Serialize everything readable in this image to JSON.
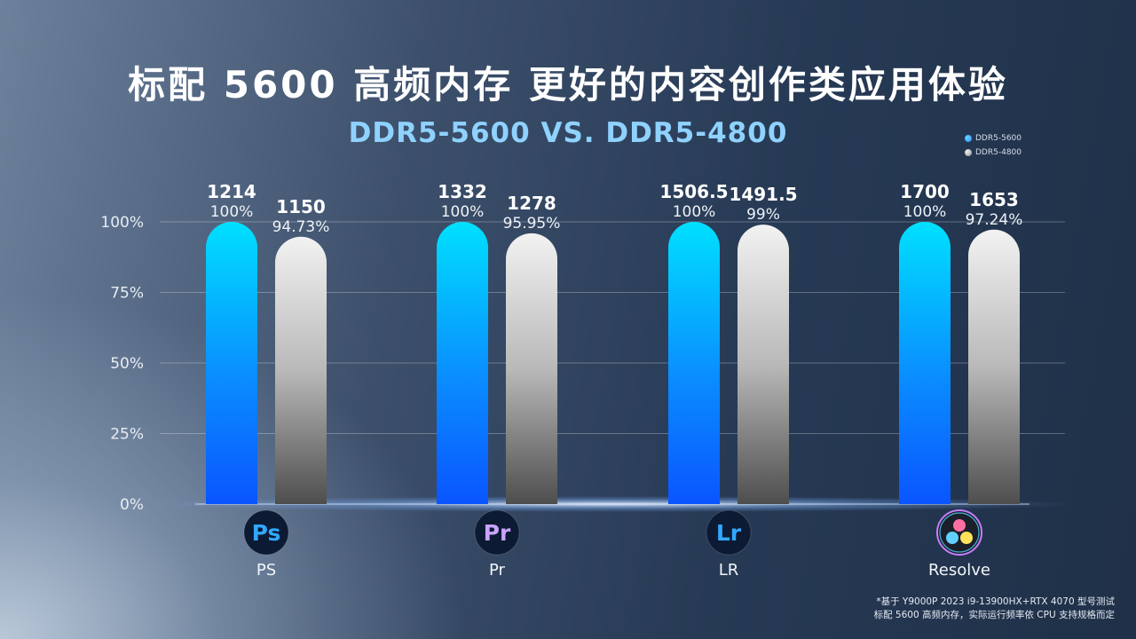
{
  "header": {
    "title": "标配 5600 高频内存 更好的内容创作类应用体验",
    "subtitle": "DDR5-5600 VS. DDR5-4800"
  },
  "colors": {
    "ddr5_5600": "#1fa2ff",
    "ddr5_4800": "#bfbfbf"
  },
  "icons": [
    {
      "name": "photoshop-icon",
      "text": "Ps"
    },
    {
      "name": "premiere-icon",
      "text": "Pr"
    },
    {
      "name": "lightroom-icon",
      "text": "Lr"
    },
    {
      "name": "davinci-resolve-icon",
      "text": ""
    }
  ],
  "footnote": {
    "line1": "*基于 Y9000P 2023 i9-13900HX+RTX 4070 型号测试",
    "line2": "标配 5600 高频内存，实际运行频率依 CPU 支持规格而定"
  },
  "chart_data": {
    "type": "bar",
    "title": "标配 5600 高频内存 更好的内容创作类应用体验",
    "subtitle": "DDR5-5600 VS. DDR5-4800",
    "categories": [
      "PS",
      "Pr",
      "LR",
      "Resolve"
    ],
    "series": [
      {
        "name": "DDR5-5600",
        "scores": [
          "1214",
          "1332",
          "1506.5",
          "1700"
        ],
        "percent_labels": [
          "100%",
          "100%",
          "100%",
          "100%"
        ],
        "values": [
          100,
          100,
          100,
          100
        ]
      },
      {
        "name": "DDR5-4800",
        "scores": [
          "1150",
          "1278",
          "1491.5",
          "1653"
        ],
        "percent_labels": [
          "94.73%",
          "95.95%",
          "99%",
          "97.24%"
        ],
        "values": [
          94.73,
          95.95,
          99,
          97.24
        ]
      }
    ],
    "yticks": [
      "0%",
      "25%",
      "50%",
      "75%",
      "100%"
    ],
    "ytick_values": [
      0,
      25,
      50,
      75,
      100
    ],
    "ylim": [
      0,
      100
    ],
    "grid": true,
    "legend": "top-right"
  }
}
